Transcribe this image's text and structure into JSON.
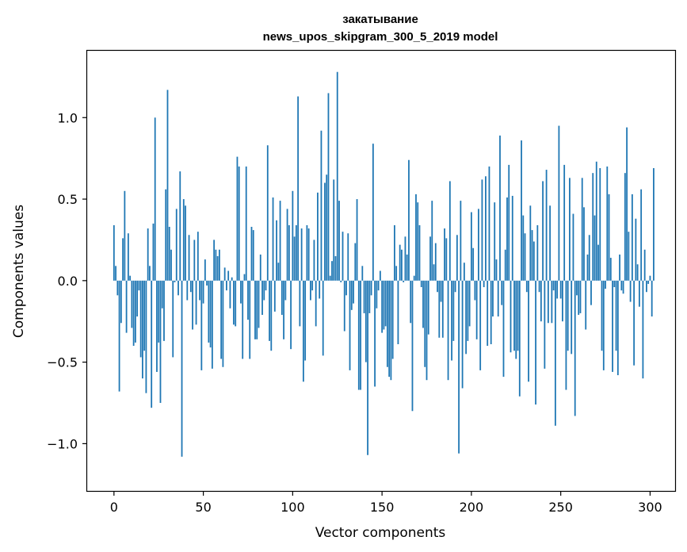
{
  "chart_data": {
    "type": "bar",
    "title_line1": "закатывание",
    "title_line2": "news_upos_skipgram_300_5_2019 model",
    "xlabel": "Vector components",
    "ylabel": "Components values",
    "xlim": [
      -15,
      314
    ],
    "ylim": [
      -1.29,
      1.41
    ],
    "xticks": [
      0,
      50,
      100,
      150,
      200,
      250,
      300
    ],
    "xtick_labels": [
      "0",
      "50",
      "100",
      "150",
      "200",
      "250",
      "300"
    ],
    "yticks": [
      -1.0,
      -0.5,
      0.0,
      0.5,
      1.0
    ],
    "ytick_labels": [
      "−1.0",
      "−0.5",
      "0.0",
      "0.5",
      "1.0"
    ],
    "bar_color": "#1f77b4",
    "grid": false,
    "values": [
      0.34,
      0.09,
      -0.09,
      -0.68,
      -0.26,
      0.26,
      0.55,
      -0.32,
      0.29,
      0.03,
      -0.29,
      -0.4,
      -0.38,
      -0.22,
      -0.06,
      -0.47,
      -0.6,
      -0.43,
      -0.69,
      0.32,
      0.09,
      -0.78,
      0.35,
      1.0,
      -0.56,
      -0.38,
      -0.75,
      -0.17,
      -0.37,
      0.56,
      1.17,
      0.33,
      0.19,
      -0.47,
      -0.01,
      0.44,
      -0.09,
      0.67,
      -1.08,
      0.5,
      0.46,
      -0.12,
      0.28,
      -0.07,
      -0.3,
      0.25,
      -0.27,
      0.3,
      -0.12,
      -0.55,
      -0.14,
      0.13,
      -0.03,
      -0.38,
      -0.41,
      -0.54,
      0.25,
      0.19,
      0.15,
      0.19,
      -0.48,
      -0.53,
      0.08,
      -0.06,
      0.06,
      -0.17,
      0.02,
      -0.27,
      -0.28,
      0.76,
      0.7,
      -0.14,
      -0.48,
      0.04,
      0.7,
      -0.24,
      -0.48,
      0.33,
      0.31,
      -0.36,
      -0.36,
      -0.29,
      0.16,
      -0.21,
      -0.12,
      -0.06,
      0.83,
      -0.37,
      -0.43,
      0.51,
      -0.19,
      0.37,
      0.11,
      0.49,
      -0.21,
      -0.36,
      -0.12,
      0.44,
      0.34,
      -0.42,
      0.55,
      0.27,
      0.34,
      1.13,
      -0.28,
      0.32,
      -0.62,
      -0.49,
      0.34,
      0.32,
      -0.12,
      -0.06,
      0.25,
      -0.28,
      0.54,
      -0.11,
      0.92,
      -0.46,
      0.6,
      0.65,
      1.15,
      0.03,
      0.12,
      0.62,
      0.15,
      1.28,
      0.49,
      -0.01,
      0.3,
      -0.31,
      -0.09,
      0.29,
      -0.55,
      -0.18,
      -0.14,
      0.23,
      0.5,
      -0.67,
      -0.67,
      0.09,
      -0.2,
      -0.5,
      -1.07,
      -0.2,
      -0.09,
      0.84,
      -0.65,
      -0.17,
      -0.06,
      0.06,
      -0.32,
      -0.3,
      -0.28,
      -0.53,
      -0.59,
      -0.61,
      -0.48,
      0.34,
      0.09,
      -0.39,
      0.22,
      0.19,
      -0.01,
      0.27,
      0.16,
      0.74,
      -0.26,
      -0.8,
      0.03,
      0.53,
      0.48,
      0.34,
      -0.04,
      -0.29,
      -0.53,
      -0.61,
      -0.33,
      0.27,
      0.49,
      0.1,
      0.23,
      -0.07,
      -0.35,
      -0.13,
      -0.35,
      0.32,
      0.26,
      -0.61,
      0.61,
      -0.49,
      -0.37,
      -0.07,
      0.28,
      -1.06,
      0.49,
      -0.66,
      0.11,
      -0.45,
      -0.37,
      -0.28,
      0.42,
      0.2,
      -0.12,
      -0.36,
      0.44,
      -0.55,
      0.62,
      -0.04,
      0.64,
      -0.4,
      0.7,
      -0.39,
      -0.22,
      0.48,
      0.13,
      -0.22,
      0.89,
      -0.15,
      -0.59,
      0.19,
      0.51,
      0.71,
      -0.44,
      0.52,
      -0.43,
      -0.48,
      -0.43,
      -0.71,
      0.86,
      0.4,
      0.29,
      -0.07,
      -0.62,
      0.46,
      0.31,
      0.24,
      -0.76,
      0.34,
      -0.07,
      -0.25,
      0.61,
      -0.54,
      0.68,
      -0.26,
      0.46,
      -0.26,
      -0.06,
      -0.89,
      -0.11,
      0.95,
      -0.11,
      -0.25,
      0.71,
      -0.67,
      -0.43,
      0.63,
      -0.45,
      0.41,
      -0.83,
      -0.09,
      -0.21,
      -0.2,
      0.63,
      0.45,
      -0.3,
      0.16,
      0.28,
      -0.15,
      0.66,
      0.4,
      0.73,
      0.22,
      0.69,
      -0.43,
      -0.55,
      -0.05,
      0.7,
      0.53,
      0.14,
      -0.56,
      -0.04,
      -0.43,
      -0.58,
      0.16,
      -0.06,
      -0.08,
      0.66,
      0.94,
      0.3,
      -0.13,
      0.53,
      -0.52,
      0.38,
      0.1,
      -0.16,
      0.56,
      -0.6,
      0.19,
      -0.07,
      -0.02,
      0.03,
      -0.22,
      0.69
    ]
  }
}
